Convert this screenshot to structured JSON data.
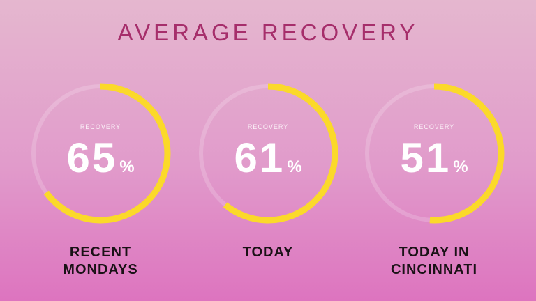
{
  "title": "AVERAGE RECOVERY",
  "gauge_label": "RECOVERY",
  "percent_symbol": "%",
  "colors": {
    "title": "#a62e6b",
    "ring": "#fbd92a",
    "caption": "#1a1116"
  },
  "gauges": [
    {
      "value": 65,
      "caption": "RECENT\nMONDAYS"
    },
    {
      "value": 61,
      "caption": "TODAY"
    },
    {
      "value": 51,
      "caption": "TODAY IN\nCINCINNATI"
    }
  ]
}
